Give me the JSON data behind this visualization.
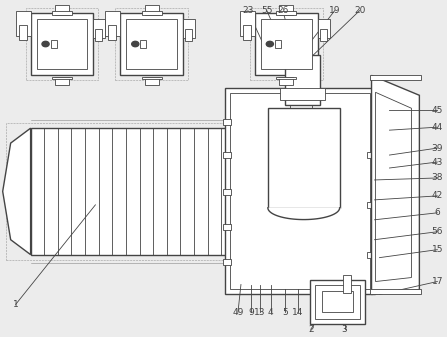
{
  "bg_color": "#ececec",
  "line_color": "#444444",
  "lw": 1.0,
  "thin_lw": 0.6,
  "fs": 6.5,
  "figsize": [
    4.47,
    3.37
  ],
  "dpi": 100
}
